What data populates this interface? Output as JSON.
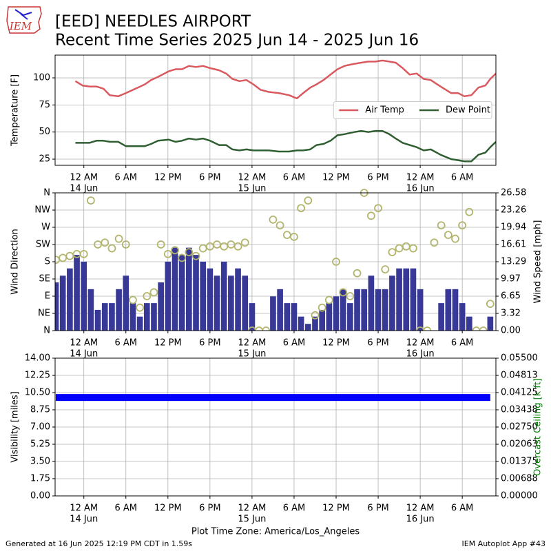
{
  "header": {
    "title": "[EED] NEEDLES AIRPORT",
    "subtitle": "Recent Time Series 2025 Jun 14 - 2025 Jun 16",
    "logo_text": "IEM"
  },
  "footer": {
    "left": "Generated at 16 Jun 2025 12:19 PM CDT in 1.59s",
    "right": "IEM Autoplot App #43"
  },
  "chart_data": [
    {
      "type": "line",
      "ylabel": "Temperature [F]",
      "grid": true,
      "legend": "center right",
      "xlim": [
        -4.1,
        58.8
      ],
      "ylim": [
        19.3,
        121
      ],
      "xticks": [
        {
          "value": 0,
          "label": "12 AM"
        },
        {
          "value": 6,
          "label": "6 AM"
        },
        {
          "value": 12,
          "label": "12 PM"
        },
        {
          "value": 18,
          "label": "6 PM"
        },
        {
          "value": 24,
          "label": "12 AM"
        },
        {
          "value": 30,
          "label": "6 AM"
        },
        {
          "value": 36,
          "label": "12 PM"
        },
        {
          "value": 42,
          "label": "6 PM"
        },
        {
          "value": 48,
          "label": "12 AM"
        },
        {
          "value": 54,
          "label": "6 AM"
        }
      ],
      "xtick_dates": [
        {
          "value": 0,
          "label": "14 Jun"
        },
        {
          "value": 24,
          "label": "15 Jun"
        },
        {
          "value": 48,
          "label": "16 Jun"
        }
      ],
      "yticks": [
        25,
        50,
        75,
        100
      ],
      "x": [
        -1.2,
        -0.2,
        0.8,
        1.8,
        2.8,
        3.7,
        4.9,
        6.0,
        7.7,
        8.7,
        9.6,
        10.6,
        12.1,
        13.1,
        14.0,
        15.0,
        16.0,
        17.0,
        18.0,
        19.3,
        20.3,
        21.2,
        22.2,
        23.2,
        24.2,
        25.2,
        26.4,
        27.8,
        29.3,
        30.4,
        31.3,
        32.3,
        33.2,
        34.2,
        35.2,
        36.2,
        37.2,
        38.6,
        39.6,
        40.6,
        41.6,
        42.6,
        43.6,
        44.5,
        45.5,
        46.5,
        47.5,
        48.5,
        49.5,
        50.9,
        52.4,
        53.4,
        54.3,
        55.3,
        56.3,
        57.3,
        58.0,
        58.8
      ],
      "series": [
        {
          "name": "Air Temp",
          "type": "line",
          "color": "#d9595f",
          "values": [
            97,
            93,
            92,
            92,
            90,
            84,
            83,
            86,
            91,
            94,
            98,
            101,
            106,
            108,
            108,
            111,
            110,
            111,
            109,
            107,
            104,
            99,
            97,
            98,
            94,
            89,
            87,
            86,
            84,
            81,
            86,
            91,
            94,
            98,
            103,
            108,
            111,
            113,
            114,
            115,
            115,
            116,
            115,
            114,
            109,
            103,
            104,
            99,
            98,
            92,
            86,
            86,
            83,
            84,
            91,
            93,
            99,
            104
          ]
        },
        {
          "name": "Dew Point",
          "type": "line",
          "color": "#2f5f30",
          "values": [
            40,
            40,
            40,
            42,
            42,
            41,
            41,
            37,
            37,
            37,
            39,
            42,
            43,
            41,
            42,
            44,
            43,
            44,
            42,
            38,
            38,
            34,
            33,
            34,
            33,
            33,
            33,
            32,
            32,
            33,
            33,
            34,
            38,
            39,
            42,
            47,
            48,
            50,
            51,
            50,
            51,
            51,
            48,
            44,
            40,
            38,
            36,
            33,
            34,
            29,
            25,
            24,
            23,
            23,
            29,
            31,
            36,
            41
          ]
        }
      ]
    },
    {
      "type": "bar",
      "ylabel": "Wind Direction",
      "y2label": "Wind Speed [mph]",
      "grid": true,
      "xlim": [
        -4.1,
        58.8
      ],
      "ylim": [
        0,
        360
      ],
      "y2lim": [
        0,
        26.58
      ],
      "xticks": [
        {
          "value": 0,
          "label": "12 AM"
        },
        {
          "value": 6,
          "label": "6 AM"
        },
        {
          "value": 12,
          "label": "12 PM"
        },
        {
          "value": 18,
          "label": "6 PM"
        },
        {
          "value": 24,
          "label": "12 AM"
        },
        {
          "value": 30,
          "label": "6 AM"
        },
        {
          "value": 36,
          "label": "12 PM"
        },
        {
          "value": 42,
          "label": "6 PM"
        },
        {
          "value": 48,
          "label": "12 AM"
        },
        {
          "value": 54,
          "label": "6 AM"
        }
      ],
      "xtick_dates": [
        {
          "value": 0,
          "label": "14 Jun"
        },
        {
          "value": 24,
          "label": "15 Jun"
        },
        {
          "value": 48,
          "label": "16 Jun"
        }
      ],
      "yticks": [
        {
          "value": 0,
          "label": "N"
        },
        {
          "value": 45,
          "label": "NE"
        },
        {
          "value": 90,
          "label": "E"
        },
        {
          "value": 135,
          "label": "SE"
        },
        {
          "value": 180,
          "label": "S"
        },
        {
          "value": 225,
          "label": "SW"
        },
        {
          "value": 270,
          "label": "W"
        },
        {
          "value": 315,
          "label": "NW"
        },
        {
          "value": 360,
          "label": "N"
        }
      ],
      "y2ticks": [
        {
          "value": 0,
          "label": "0.00"
        },
        {
          "value": 3.3225,
          "label": "3.32"
        },
        {
          "value": 6.645,
          "label": "6.65"
        },
        {
          "value": 9.9675,
          "label": "9.97"
        },
        {
          "value": 13.29,
          "label": "13.29"
        },
        {
          "value": 16.6125,
          "label": "16.61"
        },
        {
          "value": 19.935,
          "label": "19.94"
        },
        {
          "value": 23.2575,
          "label": "23.26"
        },
        {
          "value": 26.58,
          "label": "26.58"
        }
      ],
      "x": [
        -4,
        -3,
        -2,
        -1,
        0,
        1,
        2,
        3,
        4,
        5,
        6,
        7,
        8,
        9,
        10,
        11,
        12,
        13,
        14,
        15,
        16,
        17,
        18,
        19,
        20,
        21,
        22,
        23,
        24,
        25,
        26,
        27,
        28,
        29,
        30,
        31,
        32,
        33,
        34,
        35,
        36,
        37,
        38,
        39,
        40,
        41,
        42,
        43,
        44,
        45,
        46,
        47,
        48,
        49,
        50,
        51,
        52,
        53,
        54,
        55,
        56,
        57,
        58
      ],
      "series": [
        {
          "type": "bar",
          "axis": "y2",
          "color": "#383896",
          "values": [
            9.3,
            10.6,
            12,
            14.6,
            13.3,
            8,
            4,
            5.3,
            5.3,
            8,
            10.6,
            5.3,
            2.7,
            5.3,
            5.3,
            9.3,
            13.3,
            16,
            14.6,
            16,
            14.6,
            13.3,
            12,
            10.6,
            13.3,
            10.6,
            12,
            10.6,
            5.3,
            0,
            0,
            6.6,
            8,
            5.3,
            5.3,
            2.7,
            1.3,
            2.7,
            4,
            5.3,
            6.6,
            8,
            5.3,
            8,
            8,
            10.6,
            8,
            8,
            10.6,
            12,
            12,
            12,
            8,
            0,
            0,
            5.3,
            8,
            8,
            5.3,
            2.7,
            0,
            0,
            2.7
          ]
        },
        {
          "type": "scatter",
          "color": "#b3b46c",
          "values": [
            185,
            190,
            195,
            200,
            200,
            340,
            225,
            230,
            215,
            240,
            225,
            80,
            60,
            90,
            100,
            225,
            200,
            210,
            190,
            205,
            195,
            215,
            220,
            225,
            220,
            225,
            220,
            230,
            0,
            0,
            0,
            290,
            275,
            250,
            245,
            320,
            340,
            40,
            60,
            80,
            180,
            100,
            90,
            150,
            360,
            300,
            320,
            160,
            205,
            215,
            220,
            215,
            0,
            0,
            230,
            275,
            250,
            240,
            275,
            310,
            0,
            0,
            70
          ]
        }
      ]
    },
    {
      "type": "line",
      "ylabel": "Visibility [miles]",
      "y2label": "Overcast Ceiling [k ft]",
      "y2label_color": "#008000",
      "grid": true,
      "xlabel": "Plot Time Zone: America/Los_Angeles",
      "xlim": [
        -4.1,
        58.8
      ],
      "ylim": [
        0,
        14
      ],
      "y2lim": [
        0,
        0.055
      ],
      "xticks": [
        {
          "value": 0,
          "label": "12 AM"
        },
        {
          "value": 6,
          "label": "6 AM"
        },
        {
          "value": 12,
          "label": "12 PM"
        },
        {
          "value": 18,
          "label": "6 PM"
        },
        {
          "value": 24,
          "label": "12 AM"
        },
        {
          "value": 30,
          "label": "6 AM"
        },
        {
          "value": 36,
          "label": "12 PM"
        },
        {
          "value": 42,
          "label": "6 PM"
        },
        {
          "value": 48,
          "label": "12 AM"
        },
        {
          "value": 54,
          "label": "6 AM"
        }
      ],
      "xtick_dates": [
        {
          "value": 0,
          "label": "14 Jun"
        },
        {
          "value": 24,
          "label": "15 Jun"
        },
        {
          "value": 48,
          "label": "16 Jun"
        }
      ],
      "yticks": [
        {
          "value": 0,
          "label": "0.00"
        },
        {
          "value": 1.75,
          "label": "1.75"
        },
        {
          "value": 3.5,
          "label": "3.50"
        },
        {
          "value": 5.25,
          "label": "5.25"
        },
        {
          "value": 7,
          "label": "7.00"
        },
        {
          "value": 8.75,
          "label": "8.75"
        },
        {
          "value": 10.5,
          "label": "10.50"
        },
        {
          "value": 12.25,
          "label": "12.25"
        },
        {
          "value": 14,
          "label": "14.00"
        }
      ],
      "y2ticks": [
        {
          "value": 0,
          "label": "0.00000"
        },
        {
          "value": 0.006875,
          "label": "0.00688"
        },
        {
          "value": 0.01375,
          "label": "0.01375"
        },
        {
          "value": 0.020625,
          "label": "0.02063"
        },
        {
          "value": 0.0275,
          "label": "0.02750"
        },
        {
          "value": 0.034375,
          "label": "0.03438"
        },
        {
          "value": 0.04125,
          "label": "0.04125"
        },
        {
          "value": 0.048125,
          "label": "0.04813"
        },
        {
          "value": 0.055,
          "label": "0.05500"
        }
      ],
      "x": [
        -4,
        -3,
        -2,
        -1,
        0,
        1,
        2,
        3,
        4,
        5,
        6,
        7,
        8,
        9,
        10,
        11,
        12,
        13,
        14,
        15,
        16,
        17,
        18,
        19,
        20,
        21,
        22,
        23,
        24,
        25,
        26,
        27,
        28,
        29,
        30,
        31,
        32,
        33,
        34,
        35,
        36,
        37,
        38,
        39,
        40,
        41,
        42,
        43,
        44,
        45,
        46,
        47,
        48,
        49,
        50,
        51,
        52,
        53,
        54,
        55,
        56,
        57,
        58
      ],
      "series": [
        {
          "type": "band",
          "color": "#0000ff",
          "values": [
            10,
            10,
            10,
            10,
            10,
            10,
            10,
            10,
            10,
            10,
            10,
            10,
            10,
            10,
            10,
            10,
            10,
            10,
            10,
            10,
            10,
            10,
            10,
            10,
            10,
            10,
            10,
            10,
            10,
            10,
            10,
            10,
            10,
            10,
            10,
            10,
            10,
            10,
            10,
            10,
            10,
            10,
            10,
            10,
            10,
            10,
            10,
            10,
            10,
            10,
            10,
            10,
            10,
            10,
            10,
            10,
            10,
            10,
            10,
            10,
            10,
            10,
            10
          ]
        }
      ]
    }
  ]
}
